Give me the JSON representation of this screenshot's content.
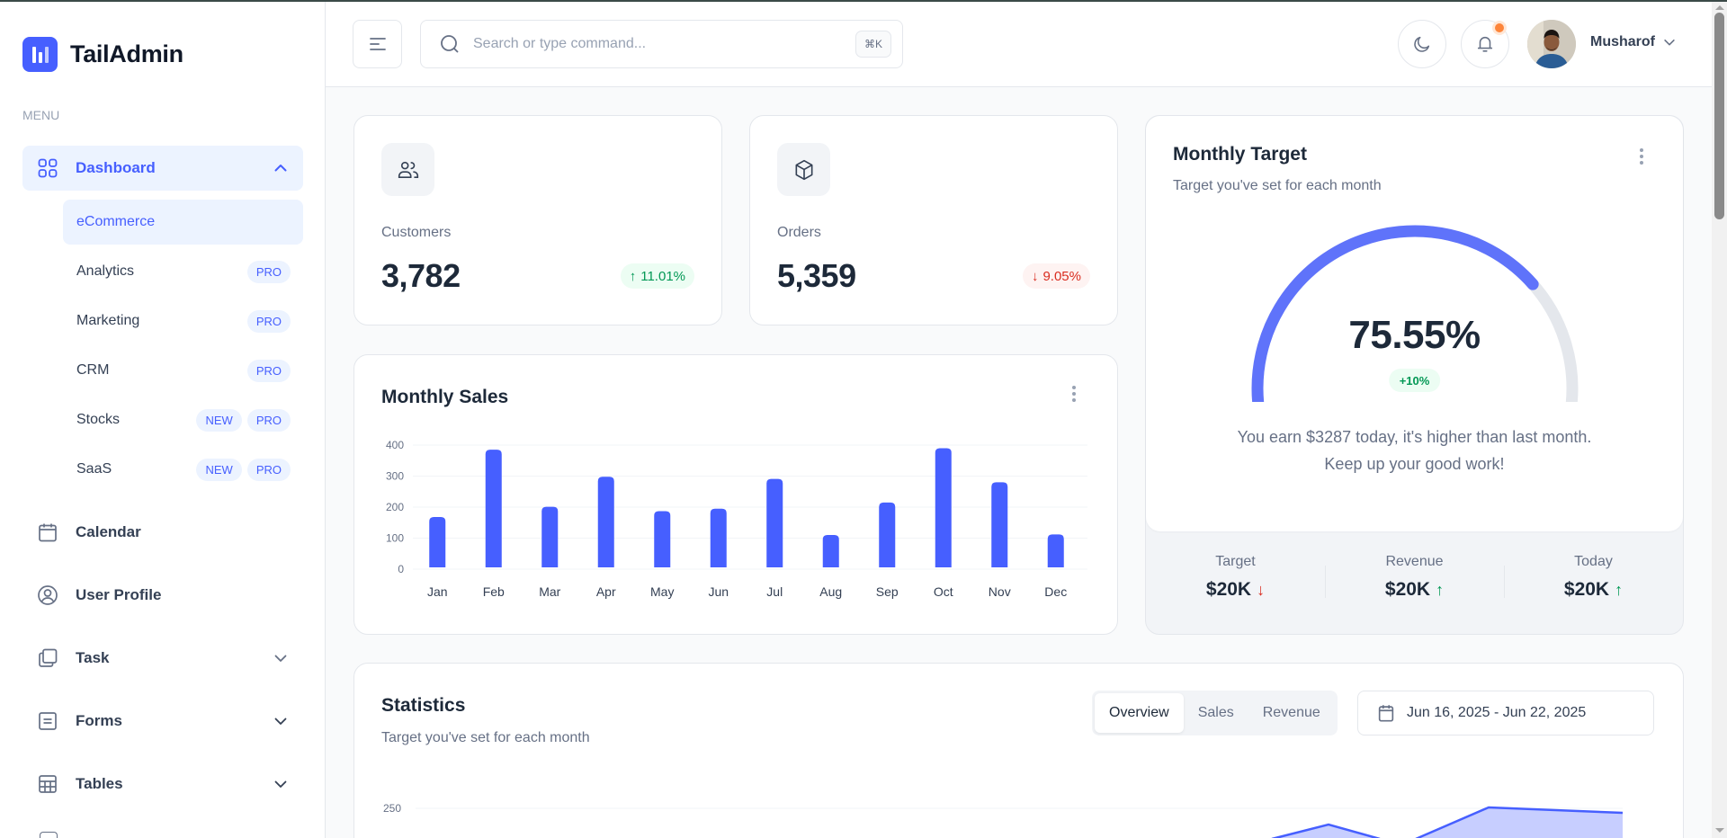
{
  "app": {
    "name": "TailAdmin"
  },
  "sidebar": {
    "menu_label": "MENU",
    "dashboard": {
      "label": "Dashboard",
      "expanded": true
    },
    "sub_items": [
      {
        "label": "eCommerce",
        "active": true,
        "badges": []
      },
      {
        "label": "Analytics",
        "badges": [
          "PRO"
        ]
      },
      {
        "label": "Marketing",
        "badges": [
          "PRO"
        ]
      },
      {
        "label": "CRM",
        "badges": [
          "PRO"
        ]
      },
      {
        "label": "Stocks",
        "badges": [
          "NEW",
          "PRO"
        ]
      },
      {
        "label": "SaaS",
        "badges": [
          "NEW",
          "PRO"
        ]
      }
    ],
    "items": [
      {
        "label": "Calendar",
        "icon": "calendar-icon"
      },
      {
        "label": "User Profile",
        "icon": "user-circle-icon"
      },
      {
        "label": "Task",
        "icon": "task-icon",
        "has_chevron": true
      },
      {
        "label": "Forms",
        "icon": "form-icon",
        "has_chevron": true
      },
      {
        "label": "Tables",
        "icon": "table-icon",
        "has_chevron": true
      }
    ]
  },
  "header": {
    "search_placeholder": "Search or type command...",
    "search_shortcut": "⌘K",
    "user_name": "Musharof",
    "has_notification": true
  },
  "metrics": [
    {
      "label": "Customers",
      "value": "3,782",
      "delta": "11.01%",
      "direction": "up",
      "icon": "users-icon"
    },
    {
      "label": "Orders",
      "value": "5,359",
      "delta": "9.05%",
      "direction": "down",
      "icon": "box-icon"
    }
  ],
  "monthly_target": {
    "title": "Monthly Target",
    "subtitle": "Target you've set for each month",
    "percent_label": "75.55%",
    "percent": 75.55,
    "change_badge": "+10%",
    "message_line1": "You earn $3287 today, it's higher than last month.",
    "message_line2": "Keep up your good work!",
    "footer": [
      {
        "label": "Target",
        "value": "$20K",
        "direction": "down"
      },
      {
        "label": "Revenue",
        "value": "$20K",
        "direction": "up"
      },
      {
        "label": "Today",
        "value": "$20K",
        "direction": "up"
      }
    ]
  },
  "monthly_sales": {
    "title": "Monthly Sales"
  },
  "statistics": {
    "title": "Statistics",
    "subtitle": "Target you've set for each month",
    "tabs": [
      {
        "label": "Overview",
        "active": true
      },
      {
        "label": "Sales",
        "active": false
      },
      {
        "label": "Revenue",
        "active": false
      }
    ],
    "date_range": "Jun 16, 2025 - Jun 22, 2025",
    "visible_y_tick": "250"
  },
  "colors": {
    "brand": "#465fff",
    "success": "#039855",
    "error": "#d92d20",
    "gauge_track": "#e4e7ec",
    "gauge_fill": "#5f73fa"
  },
  "chart_data": [
    {
      "type": "bar",
      "title": "Monthly Sales",
      "categories": [
        "Jan",
        "Feb",
        "Mar",
        "Apr",
        "May",
        "Jun",
        "Jul",
        "Aug",
        "Sep",
        "Oct",
        "Nov",
        "Dec"
      ],
      "values": [
        168,
        385,
        201,
        298,
        187,
        195,
        291,
        110,
        215,
        390,
        280,
        112
      ],
      "yticks": [
        0,
        100,
        200,
        300,
        400
      ],
      "ylim": [
        0,
        400
      ],
      "xlabel": "",
      "ylabel": "",
      "grid": true
    },
    {
      "type": "area",
      "title": "Statistics",
      "yticks": [
        250
      ],
      "note": "chart partially visible; only the top edge is in view"
    }
  ]
}
